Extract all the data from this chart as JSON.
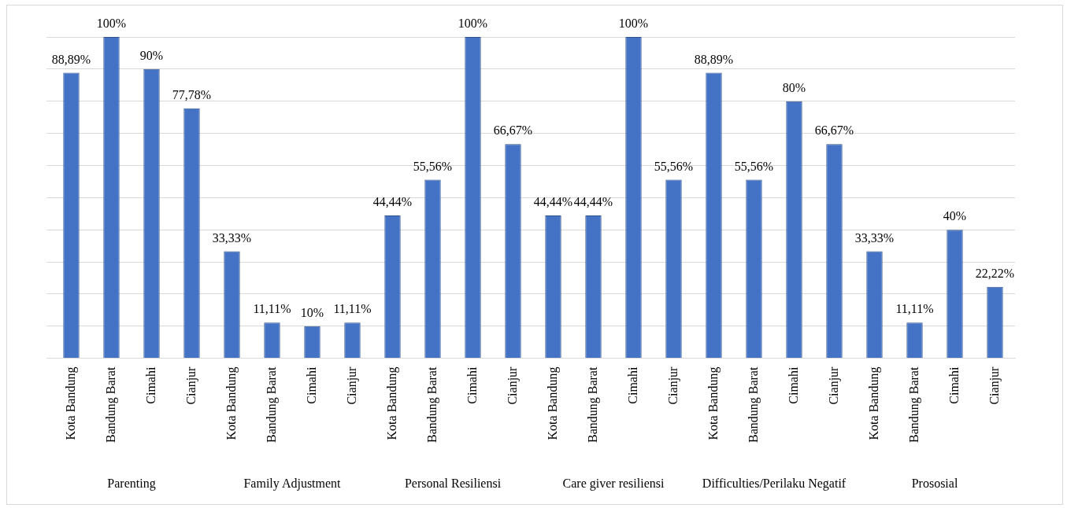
{
  "chart_data": {
    "type": "bar",
    "categories": [
      "Kota Bandung",
      "Bandung Barat",
      "Cimahi",
      "Cianjur",
      "Kota Bandung",
      "Bandung Barat",
      "Cimahi",
      "Cianjur",
      "Kota Bandung",
      "Bandung Barat",
      "Cimahi",
      "Cianjur",
      "Kota Bandung",
      "Bandung Barat",
      "Cimahi",
      "Cianjur",
      "Kota Bandung",
      "Bandung Barat",
      "Cimahi",
      "Cianjur",
      "Kota Bandung",
      "Bandung Barat",
      "Cimahi",
      "Cianjur"
    ],
    "values": [
      88.89,
      100,
      90,
      77.78,
      33.33,
      11.11,
      10,
      11.11,
      44.44,
      55.56,
      100,
      66.67,
      44.44,
      44.44,
      100,
      55.56,
      88.89,
      55.56,
      80,
      66.67,
      33.33,
      11.11,
      40,
      22.22
    ],
    "value_labels": [
      "88,89%",
      "100%",
      "90%",
      "77,78%",
      "33,33%",
      "11,11%",
      "10%",
      "11,11%",
      "44,44%",
      "55,56%",
      "100%",
      "66,67%",
      "44,44%",
      "44,44%",
      "100%",
      "55,56%",
      "88,89%",
      "55,56%",
      "80%",
      "66,67%",
      "33,33%",
      "11,11%",
      "40%",
      "22,22%"
    ],
    "color": "#4472c4",
    "ylim": [
      0,
      100
    ],
    "yticks": [
      {
        "value": 0,
        "label": null
      },
      {
        "value": 10,
        "label": null
      },
      {
        "value": 20,
        "label": null
      },
      {
        "value": 30,
        "label": null
      },
      {
        "value": 40,
        "label": null
      },
      {
        "value": 50,
        "label": null
      },
      {
        "value": 60,
        "label": null
      },
      {
        "value": 70,
        "label": null
      },
      {
        "value": 80,
        "label": null
      },
      {
        "value": 90,
        "label": null
      },
      {
        "value": 100,
        "label": null
      }
    ],
    "grid": "y",
    "annotations": [
      "Parenting",
      "Family Adjustment",
      "Personal Resiliensi",
      "Care giver resiliensi",
      "Difficulties/Perilaku Negatif",
      "Prososial"
    ]
  }
}
